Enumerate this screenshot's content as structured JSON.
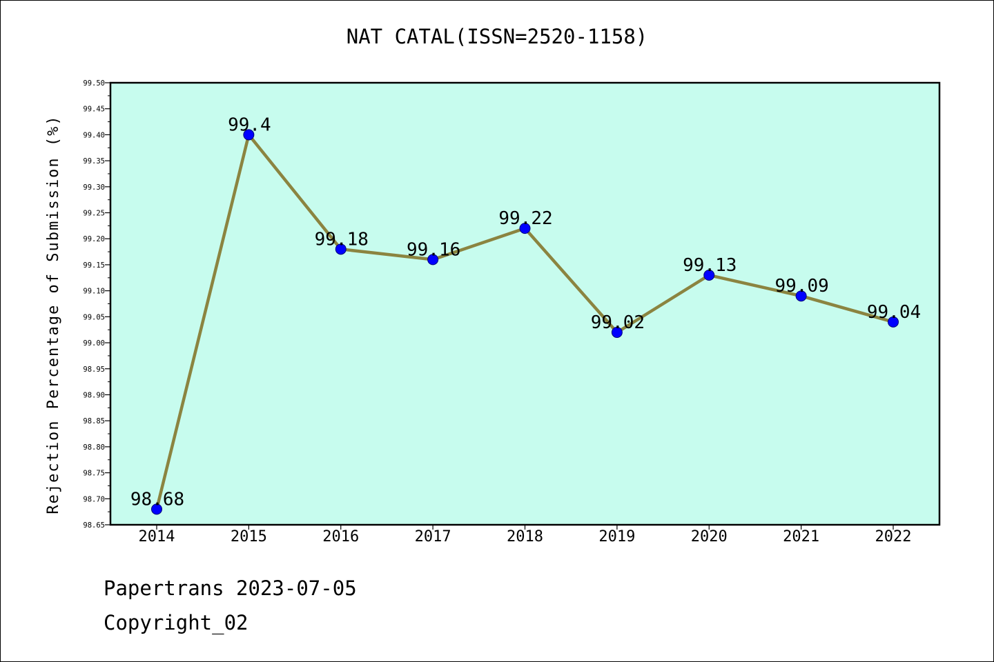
{
  "chart_data": {
    "type": "line",
    "title": "NAT CATAL(ISSN=2520-1158)",
    "xlabel": "",
    "ylabel": "Rejection Percentage of Submission (%)",
    "categories": [
      "2014",
      "2015",
      "2016",
      "2017",
      "2018",
      "2019",
      "2020",
      "2021",
      "2022"
    ],
    "series": [
      {
        "values": [
          98.68,
          99.4,
          99.18,
          99.16,
          99.22,
          99.02,
          99.13,
          99.09,
          99.04
        ],
        "data_labels": [
          "98.68",
          "99.4",
          "99.18",
          "99.16",
          "99.22",
          "99.02",
          "99.13",
          "99.09",
          "99.04"
        ],
        "line_color": "#8b8440",
        "marker_color": "#0000ff"
      }
    ],
    "ylim": [
      98.65,
      99.5
    ],
    "y_ticks": [
      "98.65",
      "98.70",
      "98.75",
      "98.80",
      "98.85",
      "98.90",
      "98.95",
      "99.00",
      "99.05",
      "99.10",
      "99.15",
      "99.20",
      "99.25",
      "99.30",
      "99.35",
      "99.40",
      "99.45",
      "99.50"
    ],
    "grid": false,
    "plot_background": "#c7fcee"
  },
  "footer": {
    "line1": "Papertrans 2023-07-05",
    "line2": "Copyright_02"
  }
}
